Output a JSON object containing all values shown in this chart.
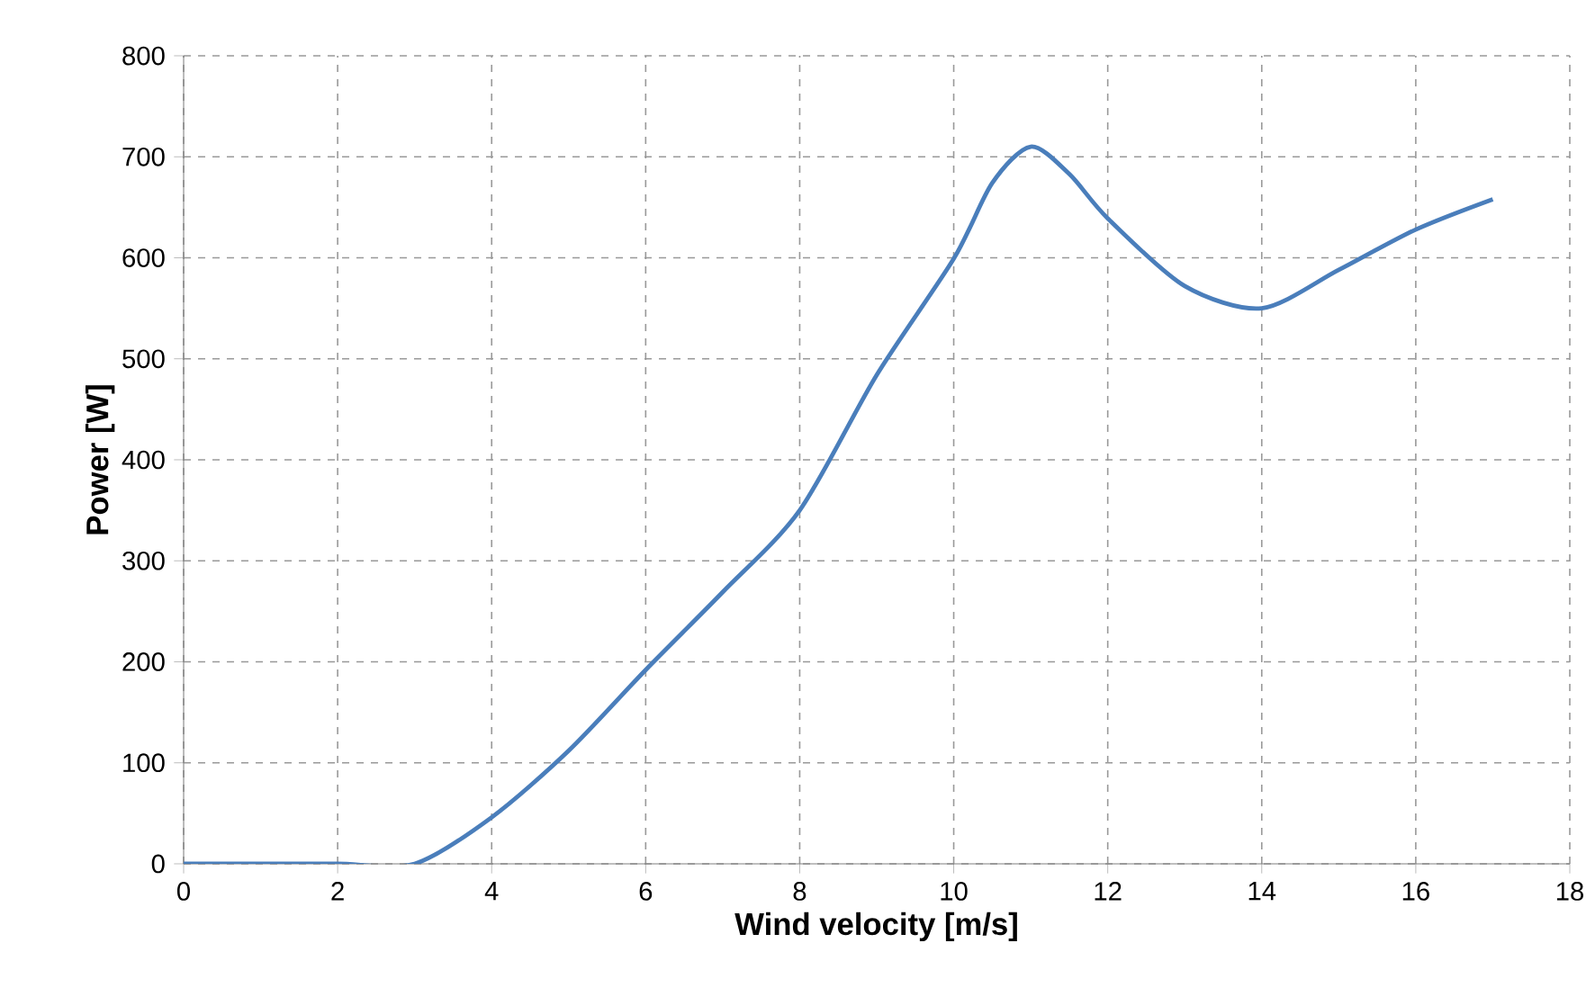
{
  "chart_data": {
    "type": "line",
    "xlabel": "Wind velocity [m/s]",
    "ylabel": "Power [W]",
    "series": [
      {
        "color": "#4a7ebb",
        "x": [
          0,
          1,
          2,
          3,
          4,
          5,
          6,
          7,
          8,
          9,
          10,
          10.5,
          11,
          11.5,
          12,
          13,
          14,
          15,
          16,
          17
        ],
        "values": [
          0,
          0,
          0,
          0,
          46,
          112,
          192,
          269,
          350,
          484,
          599,
          674,
          710,
          683,
          639,
          572,
          550,
          588,
          628,
          658
        ]
      }
    ],
    "xlim": [
      0,
      18
    ],
    "xticks": [
      0,
      2,
      4,
      6,
      8,
      10,
      12,
      14,
      16,
      18
    ],
    "ylim": [
      0,
      800
    ],
    "yticks": [
      0,
      100,
      200,
      300,
      400,
      500,
      600,
      700,
      800
    ],
    "grid": true,
    "marker": "none",
    "line_style": "solid"
  }
}
